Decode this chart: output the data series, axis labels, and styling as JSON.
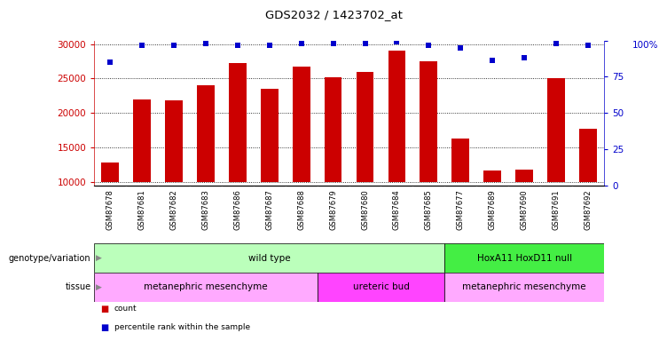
{
  "title": "GDS2032 / 1423702_at",
  "samples": [
    "GSM87678",
    "GSM87681",
    "GSM87682",
    "GSM87683",
    "GSM87686",
    "GSM87687",
    "GSM87688",
    "GSM87679",
    "GSM87680",
    "GSM87684",
    "GSM87685",
    "GSM87677",
    "GSM87689",
    "GSM87690",
    "GSM87691",
    "GSM87692"
  ],
  "counts": [
    12800,
    22000,
    21800,
    24000,
    27200,
    23500,
    26700,
    25200,
    26000,
    29000,
    27500,
    16300,
    11700,
    11800,
    25000,
    17700
  ],
  "percentiles": [
    85,
    97,
    97,
    98,
    97,
    97,
    98,
    98,
    98,
    99,
    97,
    95,
    86,
    88,
    98,
    97
  ],
  "bar_color": "#cc0000",
  "dot_color": "#0000cc",
  "ylim_left": [
    9500,
    30500
  ],
  "yticks_left": [
    10000,
    15000,
    20000,
    25000,
    30000
  ],
  "ylim_right": [
    0,
    100
  ],
  "yticks_right": [
    0,
    25,
    50,
    75,
    100
  ],
  "ylabel_left_color": "#cc0000",
  "ylabel_right_color": "#0000cc",
  "grid_color": "#000000",
  "background_color": "#ffffff",
  "tick_label_bg": "#cccccc",
  "genotype_groups": [
    {
      "label": "wild type",
      "start": 0,
      "end": 10,
      "color": "#bbffbb"
    },
    {
      "label": "HoxA11 HoxD11 null",
      "start": 11,
      "end": 15,
      "color": "#44ee44"
    }
  ],
  "tissue_groups": [
    {
      "label": "metanephric mesenchyme",
      "start": 0,
      "end": 6,
      "color": "#ffaaff"
    },
    {
      "label": "ureteric bud",
      "start": 7,
      "end": 10,
      "color": "#ff44ff"
    },
    {
      "label": "metanephric mesenchyme",
      "start": 11,
      "end": 15,
      "color": "#ffaaff"
    }
  ],
  "legend_items": [
    {
      "label": "count",
      "color": "#cc0000"
    },
    {
      "label": "percentile rank within the sample",
      "color": "#0000cc"
    }
  ],
  "genotype_label": "genotype/variation",
  "tissue_label": "tissue",
  "bar_width": 0.55,
  "right_axis_label": "100%",
  "dot_size": 18,
  "baseline": 10000
}
